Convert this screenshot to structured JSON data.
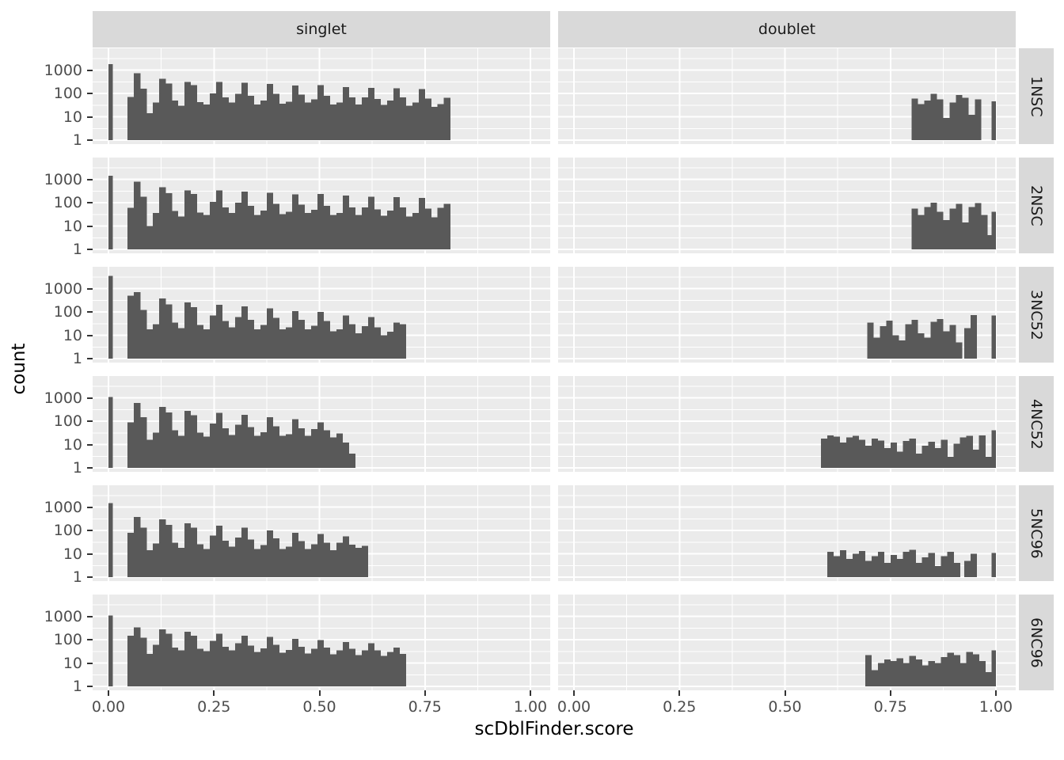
{
  "axis": {
    "x_label": "scDblFinder.score",
    "y_label": "count",
    "x_ticks": [
      "0.00",
      "0.25",
      "0.50",
      "0.75",
      "1.00"
    ],
    "x_tick_values": [
      0,
      0.25,
      0.5,
      0.75,
      1
    ],
    "y_ticks": [
      "1000",
      "100",
      "10",
      "1"
    ],
    "y_tick_values": [
      1000,
      100,
      10,
      1
    ]
  },
  "facets": {
    "columns": [
      "singlet",
      "doublet"
    ],
    "rows": [
      "1NSC",
      "2NSC",
      "3NC52",
      "4NC52",
      "5NC96",
      "6NC96"
    ]
  },
  "colors": {
    "bar": "#595959",
    "panel_bg": "#EBEBEB",
    "grid": "#FFFFFF",
    "strip_bg": "#D9D9D9",
    "tick_text": "#4D4D4D",
    "tick_mark": "#333333",
    "title_text": "#000000"
  },
  "chart_data": {
    "type": "bar",
    "subtype": "faceted-histogram",
    "title": "",
    "xlabel": "scDblFinder.score",
    "ylabel": "count",
    "x_range": [
      -0.04,
      1.04
    ],
    "y_scale": {
      "type": "log10",
      "breaks": [
        1,
        10,
        100,
        1000
      ],
      "minor_breaks": [
        3.162,
        31.62,
        316.2,
        3162
      ]
    },
    "x_minor_step": 0.125,
    "legend": "none",
    "grid": "on",
    "panels": [
      {
        "row": "1NSC",
        "col": "singlet",
        "bins": {
          "start": 0.045,
          "width": 0.015,
          "counts": [
            70,
            720,
            160,
            14,
            40,
            420,
            270,
            50,
            30,
            310,
            230,
            42,
            34,
            100,
            310,
            68,
            40,
            95,
            290,
            78,
            34,
            50,
            260,
            95,
            36,
            44,
            215,
            88,
            40,
            55,
            230,
            78,
            34,
            40,
            190,
            68,
            34,
            68,
            175,
            58,
            32,
            50,
            165,
            68,
            30,
            40,
            155,
            60,
            27,
            35,
            65
          ]
        },
        "spikes": [
          {
            "x": 0.0,
            "w": 0.01,
            "count": 1800
          }
        ]
      },
      {
        "row": "1NSC",
        "col": "doublet",
        "bins": {
          "start": 0.8,
          "width": 0.015,
          "counts": [
            60,
            35,
            50,
            95,
            55,
            9,
            40,
            85,
            65,
            12,
            55
          ]
        },
        "spikes": [
          {
            "x": 0.99,
            "w": 0.01,
            "count": 45
          }
        ]
      },
      {
        "row": "2NSC",
        "col": "singlet",
        "bins": {
          "start": 0.045,
          "width": 0.015,
          "counts": [
            60,
            800,
            180,
            10,
            36,
            450,
            260,
            44,
            26,
            330,
            240,
            38,
            30,
            110,
            330,
            62,
            36,
            100,
            300,
            72,
            30,
            46,
            270,
            90,
            32,
            40,
            225,
            82,
            36,
            50,
            240,
            72,
            30,
            36,
            200,
            62,
            30,
            62,
            180,
            52,
            28,
            46,
            170,
            62,
            26,
            36,
            160,
            55,
            24,
            60,
            90
          ]
        },
        "spikes": [
          {
            "x": 0.0,
            "w": 0.01,
            "count": 1400
          }
        ]
      },
      {
        "row": "2NSC",
        "col": "doublet",
        "bins": {
          "start": 0.8,
          "width": 0.015,
          "counts": [
            55,
            30,
            65,
            100,
            40,
            18,
            55,
            90,
            14,
            65,
            95,
            30,
            4
          ]
        },
        "spikes": [
          {
            "x": 0.99,
            "w": 0.01,
            "count": 40
          }
        ]
      },
      {
        "row": "3NC52",
        "col": "singlet",
        "bins": {
          "start": 0.045,
          "width": 0.015,
          "counts": [
            500,
            700,
            120,
            18,
            30,
            380,
            210,
            35,
            20,
            260,
            160,
            28,
            18,
            70,
            200,
            40,
            22,
            60,
            170,
            45,
            18,
            28,
            140,
            55,
            18,
            22,
            110,
            45,
            18,
            26,
            100,
            40,
            15,
            18,
            70,
            30,
            12,
            25,
            60,
            22,
            10,
            14,
            35,
            30
          ]
        },
        "spikes": [
          {
            "x": 0.0,
            "w": 0.01,
            "count": 3500
          }
        ]
      },
      {
        "row": "3NC52",
        "col": "doublet",
        "bins": {
          "start": 0.695,
          "width": 0.015,
          "counts": [
            35,
            8,
            25,
            42,
            10,
            6,
            30,
            45,
            12,
            8,
            38,
            50,
            15,
            28,
            5
          ]
        },
        "spikes": [
          {
            "x": 0.925,
            "w": 0.015,
            "count": 20
          },
          {
            "x": 0.94,
            "w": 0.015,
            "count": 72
          },
          {
            "x": 0.99,
            "w": 0.01,
            "count": 70
          }
        ]
      },
      {
        "row": "4NC52",
        "col": "singlet",
        "bins": {
          "start": 0.045,
          "width": 0.015,
          "counts": [
            90,
            600,
            150,
            16,
            32,
            400,
            240,
            40,
            24,
            280,
            180,
            32,
            22,
            80,
            230,
            50,
            26,
            70,
            190,
            55,
            24,
            34,
            150,
            60,
            24,
            28,
            120,
            50,
            24,
            45,
            90,
            40,
            20,
            30,
            12,
            4
          ]
        },
        "spikes": [
          {
            "x": 0.0,
            "w": 0.01,
            "count": 1100
          }
        ]
      },
      {
        "row": "4NC52",
        "col": "doublet",
        "bins": {
          "start": 0.585,
          "width": 0.015,
          "counts": [
            18,
            25,
            22,
            12,
            20,
            24,
            16,
            9,
            18,
            15,
            7,
            12,
            5,
            14,
            18,
            4,
            9,
            13,
            7,
            16,
            3,
            11,
            20,
            24,
            6,
            25,
            3
          ]
        },
        "spikes": [
          {
            "x": 0.99,
            "w": 0.01,
            "count": 40
          }
        ]
      },
      {
        "row": "5NC96",
        "col": "singlet",
        "bins": {
          "start": 0.045,
          "width": 0.015,
          "counts": [
            80,
            380,
            130,
            14,
            28,
            300,
            170,
            30,
            18,
            200,
            130,
            26,
            16,
            60,
            160,
            36,
            20,
            50,
            130,
            40,
            16,
            24,
            100,
            45,
            16,
            20,
            80,
            35,
            16,
            26,
            70,
            30,
            14,
            30,
            55,
            25,
            18,
            22
          ]
        },
        "spikes": [
          {
            "x": 0.0,
            "w": 0.01,
            "count": 1500
          }
        ]
      },
      {
        "row": "5NC96",
        "col": "doublet",
        "bins": {
          "start": 0.6,
          "width": 0.015,
          "counts": [
            12,
            8,
            14,
            6,
            10,
            13,
            5,
            8,
            12,
            4,
            9,
            6,
            12,
            15,
            4,
            7,
            11,
            3,
            8,
            12,
            4
          ]
        },
        "spikes": [
          {
            "x": 0.925,
            "w": 0.015,
            "count": 5
          },
          {
            "x": 0.94,
            "w": 0.015,
            "count": 10
          },
          {
            "x": 0.99,
            "w": 0.01,
            "count": 11
          }
        ]
      },
      {
        "row": "6NC96",
        "col": "singlet",
        "bins": {
          "start": 0.045,
          "width": 0.015,
          "counts": [
            150,
            330,
            120,
            25,
            60,
            280,
            180,
            45,
            35,
            220,
            150,
            40,
            32,
            90,
            180,
            50,
            35,
            70,
            150,
            55,
            30,
            42,
            130,
            60,
            28,
            36,
            110,
            50,
            26,
            40,
            95,
            45,
            24,
            35,
            80,
            40,
            22,
            35,
            70,
            35,
            20,
            30,
            45,
            25
          ]
        },
        "spikes": [
          {
            "x": 0.0,
            "w": 0.01,
            "count": 1100
          }
        ]
      },
      {
        "row": "6NC96",
        "col": "doublet",
        "bins": {
          "start": 0.69,
          "width": 0.015,
          "counts": [
            22,
            5,
            10,
            14,
            12,
            16,
            10,
            20,
            14,
            8,
            12,
            10,
            18,
            28,
            22,
            10,
            30,
            24,
            12,
            4
          ]
        },
        "spikes": [
          {
            "x": 0.99,
            "w": 0.01,
            "count": 35
          }
        ]
      }
    ]
  }
}
